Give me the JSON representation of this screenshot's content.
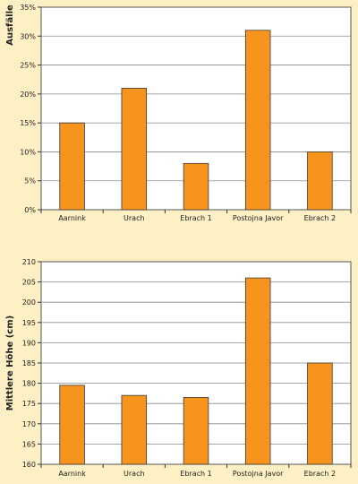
{
  "chart_data": [
    {
      "type": "bar",
      "title": "",
      "xlabel": "",
      "ylabel": "Ausfälle",
      "categories": [
        "Aarnink",
        "Urach",
        "Ebrach 1",
        "Postojna Javor",
        "Ebrach 2"
      ],
      "values": [
        15,
        21,
        8,
        31,
        10
      ],
      "ylim": [
        0,
        35
      ],
      "yticks": [
        0,
        5,
        10,
        15,
        20,
        25,
        30,
        35
      ],
      "ytick_labels": [
        "0%",
        "5%",
        "10%",
        "15%",
        "20%",
        "25%",
        "30%",
        "35%"
      ],
      "grid": true,
      "colors": {
        "bar": "#f7941d",
        "bar_edge": "#3a3a3a",
        "plot_bg": "#ffffff",
        "grid": "#8a8a8a"
      }
    },
    {
      "type": "bar",
      "title": "",
      "xlabel": "",
      "ylabel": "Mittlere Höhe (cm)",
      "categories": [
        "Aarnink",
        "Urach",
        "Ebrach 1",
        "Postojna Javor",
        "Ebrach 2"
      ],
      "values": [
        179.5,
        177,
        176.5,
        206,
        185
      ],
      "ylim": [
        160,
        210
      ],
      "yticks": [
        160,
        165,
        170,
        175,
        180,
        185,
        190,
        195,
        200,
        205,
        210
      ],
      "ytick_labels": [
        "160",
        "165",
        "170",
        "175",
        "180",
        "185",
        "190",
        "195",
        "200",
        "205",
        "210"
      ],
      "grid": true,
      "colors": {
        "bar": "#f7941d",
        "bar_edge": "#3a3a3a",
        "plot_bg": "#ffffff",
        "grid": "#8a8a8a"
      }
    }
  ]
}
